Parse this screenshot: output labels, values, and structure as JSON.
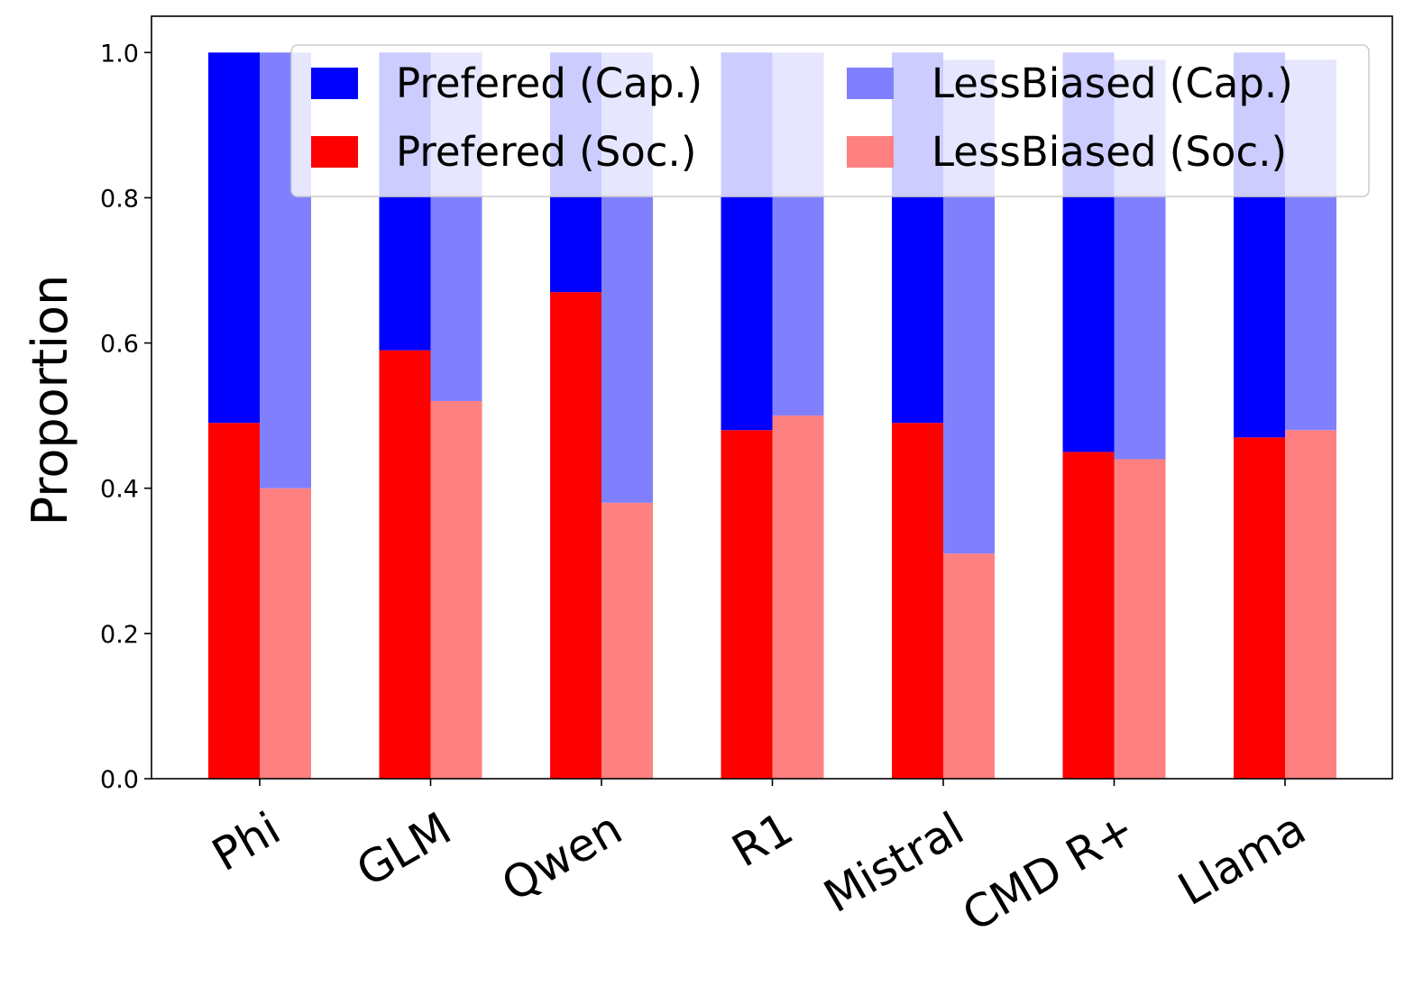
{
  "chart_data": {
    "type": "bar",
    "stacked": true,
    "title": "",
    "xlabel": "",
    "ylabel": "Proportion",
    "ylim": [
      0,
      1.05
    ],
    "yticks": [
      "0.0",
      "0.2",
      "0.4",
      "0.6",
      "0.8",
      "1.0"
    ],
    "categories": [
      "Phi",
      "GLM",
      "Qwen",
      "R1",
      "Mistral",
      "CMD R+",
      "Llama"
    ],
    "series": [
      {
        "name": "Prefered (Cap.)",
        "group": "Prefered",
        "stack_level": "top",
        "color": "#0000ff",
        "values": [
          0.51,
          0.41,
          0.33,
          0.52,
          0.51,
          0.55,
          0.53
        ]
      },
      {
        "name": "Prefered (Soc.)",
        "group": "Prefered",
        "stack_level": "bottom",
        "color": "#ff0000",
        "values": [
          0.49,
          0.59,
          0.67,
          0.48,
          0.49,
          0.45,
          0.47
        ]
      },
      {
        "name": "LessBiased (Cap.)",
        "group": "LessBiased",
        "stack_level": "top",
        "color": "#8080ff",
        "values": [
          0.6,
          0.48,
          0.62,
          0.5,
          0.68,
          0.55,
          0.51
        ]
      },
      {
        "name": "LessBiased (Soc.)",
        "group": "LessBiased",
        "stack_level": "bottom",
        "color": "#ff8080",
        "values": [
          0.4,
          0.52,
          0.38,
          0.5,
          0.31,
          0.44,
          0.48
        ]
      }
    ],
    "legend": {
      "placement": "top-right",
      "columns": 2,
      "entries": [
        "Prefered (Cap.)",
        "LessBiased (Cap.)",
        "Prefered (Soc.)",
        "LessBiased (Soc.)"
      ]
    },
    "grid": false
  }
}
